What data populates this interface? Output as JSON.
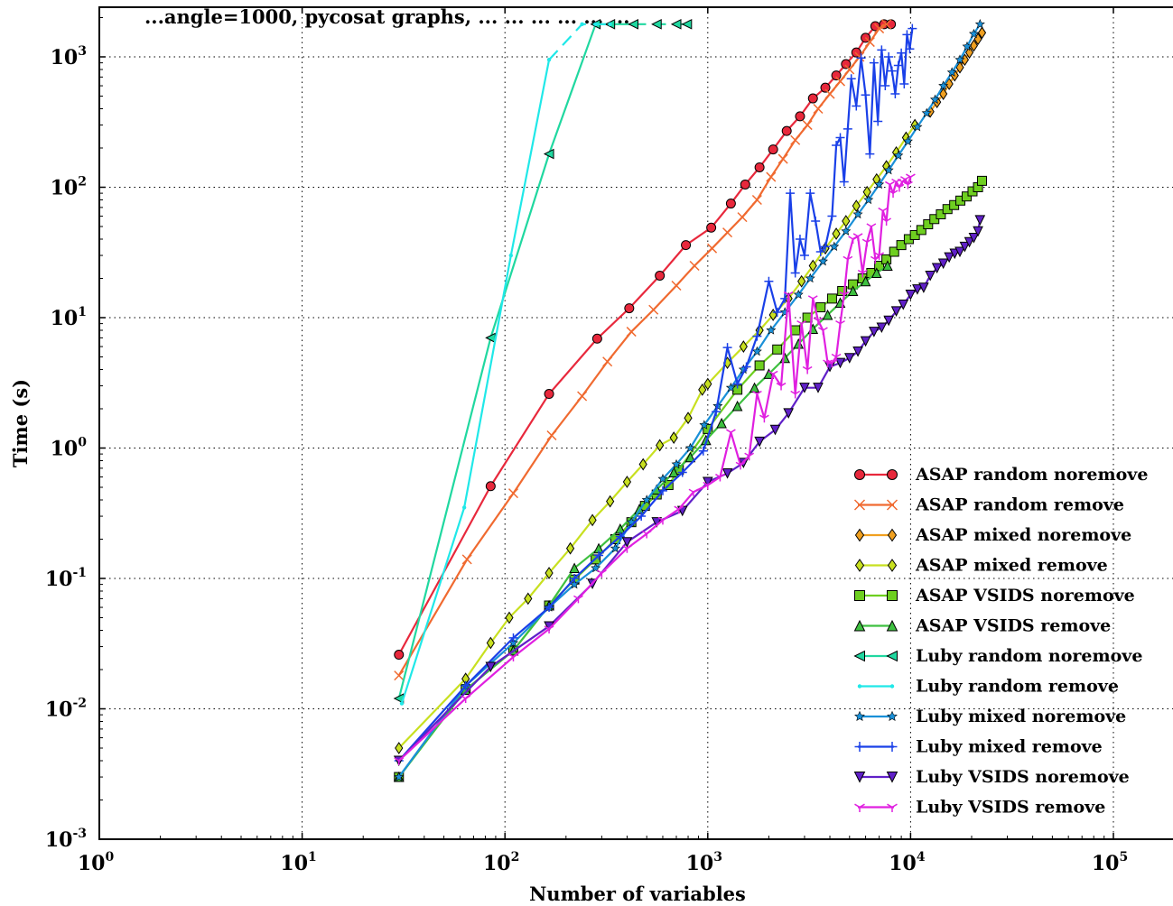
{
  "chart_data": {
    "type": "line",
    "title": "...angle=1000, pycosat graphs, ... ... ... ... ... ...",
    "xlabel": "Number of variables",
    "ylabel": "Time (s)",
    "xscale": "log",
    "yscale": "log",
    "xlim": [
      1,
      200000
    ],
    "ylim": [
      0.001,
      2500
    ],
    "x_ticks": [
      1,
      10,
      100,
      1000,
      10000,
      100000
    ],
    "x_tick_base": [
      "10",
      "10",
      "10",
      "10",
      "10",
      "10"
    ],
    "x_tick_exp": [
      "0",
      "1",
      "2",
      "3",
      "4",
      "5"
    ],
    "y_ticks": [
      0.001,
      0.01,
      0.1,
      1,
      10,
      100,
      1000
    ],
    "y_tick_base": [
      "10",
      "10",
      "10",
      "10",
      "10",
      "10",
      "10"
    ],
    "y_tick_exp": [
      "-3",
      "-2",
      "-1",
      "0",
      "1",
      "2",
      "3"
    ],
    "grid": true,
    "legend_position": "lower-right",
    "series": [
      {
        "name": "ASAP random noremove",
        "color": "#e8283c",
        "marker": "circle",
        "x": [
          30,
          85,
          165,
          285,
          410,
          580,
          780,
          1040,
          1300,
          1530,
          1800,
          2100,
          2450,
          2850,
          3300,
          3800,
          4300,
          4800,
          5400,
          6000,
          6700,
          7400,
          8000
        ],
        "y": [
          0.026,
          0.51,
          2.6,
          6.9,
          11.8,
          21,
          36,
          49,
          75,
          105,
          142,
          195,
          270,
          350,
          480,
          580,
          720,
          880,
          1080,
          1400,
          1720,
          1780,
          1780
        ]
      },
      {
        "name": "ASAP random remove",
        "color": "#f06a30",
        "marker": "x",
        "x": [
          30,
          65,
          110,
          170,
          240,
          320,
          420,
          540,
          700,
          860,
          1050,
          1250,
          1480,
          1750,
          2050,
          2350,
          2700,
          3100,
          3500,
          4000,
          4500,
          5000,
          5600,
          6300,
          7000,
          7600
        ],
        "y": [
          0.018,
          0.14,
          0.45,
          1.25,
          2.5,
          4.6,
          7.8,
          11.5,
          17.6,
          25,
          34,
          45,
          59,
          80,
          120,
          165,
          230,
          300,
          400,
          520,
          650,
          800,
          1000,
          1300,
          1650,
          1780
        ]
      },
      {
        "name": "ASAP mixed noremove",
        "color": "#f0a020",
        "marker": "diamond",
        "x": [
          12500,
          13500,
          14500,
          15500,
          16500,
          17500,
          18500,
          19500,
          20500,
          21500,
          22500
        ],
        "y": [
          380,
          450,
          520,
          620,
          720,
          830,
          950,
          1080,
          1220,
          1370,
          1530
        ]
      },
      {
        "name": "ASAP mixed remove",
        "color": "#c8e020",
        "marker": "diamond",
        "x": [
          30,
          64,
          85,
          105,
          130,
          165,
          210,
          270,
          330,
          400,
          480,
          580,
          680,
          800,
          940,
          1000,
          1250,
          1500,
          1800,
          2100,
          2500,
          2900,
          3300,
          3800,
          4300,
          4800,
          5400,
          6100,
          6800,
          7600,
          8500,
          9500,
          10500
        ],
        "y": [
          0.005,
          0.017,
          0.032,
          0.05,
          0.07,
          0.11,
          0.17,
          0.28,
          0.39,
          0.55,
          0.75,
          1.05,
          1.2,
          1.7,
          2.8,
          3.1,
          4.5,
          6,
          8,
          10.5,
          14,
          19,
          25,
          34,
          44,
          55,
          72,
          92,
          115,
          145,
          185,
          240,
          300
        ]
      },
      {
        "name": "ASAP VSIDS noremove",
        "color": "#6ecf20",
        "marker": "square",
        "x": [
          30,
          64,
          110,
          165,
          220,
          280,
          350,
          420,
          490,
          560,
          640,
          720,
          1000,
          1400,
          1800,
          2200,
          2700,
          3100,
          3600,
          4100,
          4600,
          5200,
          5800,
          6400,
          7000,
          7600,
          8300,
          9000,
          9800,
          10500,
          11300,
          12200,
          13100,
          14100,
          15200,
          16400,
          17600,
          18900,
          20200,
          21500,
          22500
        ],
        "y": [
          0.003,
          0.014,
          0.028,
          0.062,
          0.098,
          0.14,
          0.2,
          0.27,
          0.36,
          0.44,
          0.52,
          0.68,
          1.4,
          2.8,
          4.3,
          5.7,
          8,
          10,
          12,
          14,
          16,
          18,
          20,
          22,
          25,
          28,
          32,
          36,
          40,
          43,
          47,
          52,
          57,
          62,
          68,
          73,
          79,
          85,
          93,
          100,
          112
        ]
      },
      {
        "name": "ASAP VSIDS remove",
        "color": "#3ec040",
        "marker": "triangle-up",
        "x": [
          30,
          64,
          110,
          165,
          220,
          290,
          370,
          460,
          560,
          680,
          820,
          980,
          1170,
          1400,
          1700,
          2000,
          2400,
          2800,
          3300,
          3900,
          4500,
          5200,
          6000,
          6800,
          7700
        ],
        "y": [
          0.003,
          0.014,
          0.028,
          0.062,
          0.12,
          0.17,
          0.24,
          0.34,
          0.48,
          0.65,
          0.85,
          1.15,
          1.55,
          2.1,
          2.9,
          3.7,
          4.9,
          6.3,
          8.2,
          10.5,
          13,
          16,
          19,
          22,
          25
        ]
      },
      {
        "name": "Luby random noremove",
        "color": "#20d8a0",
        "marker": "triangle-left",
        "dash_after": 5,
        "x": [
          30,
          85,
          165,
          280,
          330,
          430,
          560,
          700,
          790
        ],
        "y": [
          0.012,
          7,
          180,
          1780,
          1780,
          1780,
          1780,
          1780,
          1780
        ]
      },
      {
        "name": "Luby random remove",
        "color": "#20e8e8",
        "marker": "point",
        "dash_after": 3,
        "x": [
          31,
          63,
          107,
          165,
          240,
          280,
          330
        ],
        "y": [
          0.011,
          0.35,
          30,
          950,
          1780,
          1780,
          1780
        ]
      },
      {
        "name": "Luby mixed noremove",
        "color": "#1a90d8",
        "marker": "star",
        "x": [
          30,
          64,
          110,
          165,
          220,
          280,
          350,
          420,
          500,
          600,
          700,
          820,
          960,
          1120,
          1300,
          1500,
          1750,
          2050,
          2400,
          2800,
          3200,
          3700,
          4200,
          4800,
          5500,
          6200,
          7000,
          7800,
          8700,
          9700,
          10800,
          12000,
          13200,
          14500,
          16000,
          17500,
          19000,
          20500,
          22000
        ],
        "y": [
          0.003,
          0.015,
          0.032,
          0.06,
          0.09,
          0.12,
          0.17,
          0.27,
          0.4,
          0.58,
          0.75,
          1,
          1.5,
          2.1,
          2.9,
          4,
          5.5,
          8,
          11,
          15,
          20,
          27,
          35,
          46,
          62,
          80,
          105,
          135,
          175,
          225,
          290,
          370,
          470,
          600,
          760,
          950,
          1200,
          1500,
          1780
        ]
      },
      {
        "name": "Luby mixed remove",
        "color": "#1a40e8",
        "marker": "plus",
        "x": [
          30,
          64,
          110,
          165,
          220,
          290,
          370,
          470,
          600,
          750,
          950,
          1100,
          1250,
          1400,
          1550,
          1750,
          2000,
          2200,
          2400,
          2550,
          2700,
          2850,
          3000,
          3200,
          3400,
          3600,
          3800,
          4100,
          4300,
          4500,
          4700,
          4900,
          5100,
          5400,
          5700,
          6000,
          6300,
          6600,
          6900,
          7200,
          7500,
          7800,
          8100,
          8400,
          8700,
          9000,
          9300,
          9600,
          9900,
          10200
        ],
        "y": [
          0.004,
          0.015,
          0.035,
          0.06,
          0.1,
          0.15,
          0.21,
          0.3,
          0.47,
          0.65,
          0.95,
          1.9,
          5.9,
          3.1,
          4.2,
          7.2,
          19,
          11,
          14,
          90,
          22,
          40,
          30,
          90,
          55,
          32,
          35,
          60,
          210,
          240,
          110,
          280,
          680,
          420,
          980,
          510,
          180,
          900,
          320,
          1130,
          600,
          1000,
          780,
          520,
          860,
          1070,
          620,
          1480,
          1150,
          1650
        ]
      },
      {
        "name": "Luby VSIDS noremove",
        "color": "#6020c8",
        "marker": "triangle-down",
        "x": [
          30,
          85,
          165,
          270,
          400,
          560,
          750,
          1000,
          1250,
          1500,
          1800,
          2150,
          2500,
          3000,
          3500,
          4000,
          4500,
          5000,
          5500,
          6000,
          6600,
          7200,
          7800,
          8500,
          9200,
          10000,
          10800,
          11600,
          12500,
          13500,
          14500,
          15500,
          16500,
          17500,
          18500,
          19500,
          20500,
          21500,
          22000
        ],
        "y": [
          0.004,
          0.021,
          0.043,
          0.091,
          0.19,
          0.27,
          0.33,
          0.55,
          0.64,
          0.77,
          1.12,
          1.38,
          1.85,
          2.9,
          2.9,
          4.2,
          4.5,
          4.9,
          5.5,
          6.6,
          7.8,
          8.4,
          9.5,
          11.2,
          12.6,
          15,
          16.5,
          17,
          21,
          24,
          26,
          29,
          31,
          32,
          35,
          38,
          41,
          46,
          56
        ]
      },
      {
        "name": "Luby VSIDS remove",
        "color": "#e020e0",
        "marker": "tri-down",
        "x": [
          30,
          64,
          110,
          165,
          230,
          300,
          400,
          500,
          600,
          720,
          850,
          1000,
          1150,
          1300,
          1450,
          1600,
          1750,
          1900,
          2100,
          2300,
          2500,
          2700,
          2900,
          3100,
          3300,
          3500,
          3700,
          3900,
          4100,
          4300,
          4500,
          4700,
          4900,
          5200,
          5500,
          5800,
          6100,
          6400,
          6700,
          7000,
          7300,
          7600,
          7900,
          8200,
          8500,
          8800,
          9100,
          9400,
          9700,
          10000
        ],
        "y": [
          0.004,
          0.012,
          0.025,
          0.041,
          0.07,
          0.11,
          0.17,
          0.22,
          0.28,
          0.34,
          0.46,
          0.52,
          0.6,
          1.32,
          0.74,
          0.87,
          2.6,
          1.7,
          3.7,
          3.0,
          15,
          2.6,
          9,
          4,
          14,
          9.5,
          8,
          4.5,
          4.5,
          5,
          9,
          15,
          28,
          40,
          42,
          22,
          38,
          50,
          28,
          30,
          66,
          55,
          105,
          90,
          110,
          100,
          110,
          115,
          105,
          120
        ]
      }
    ]
  }
}
